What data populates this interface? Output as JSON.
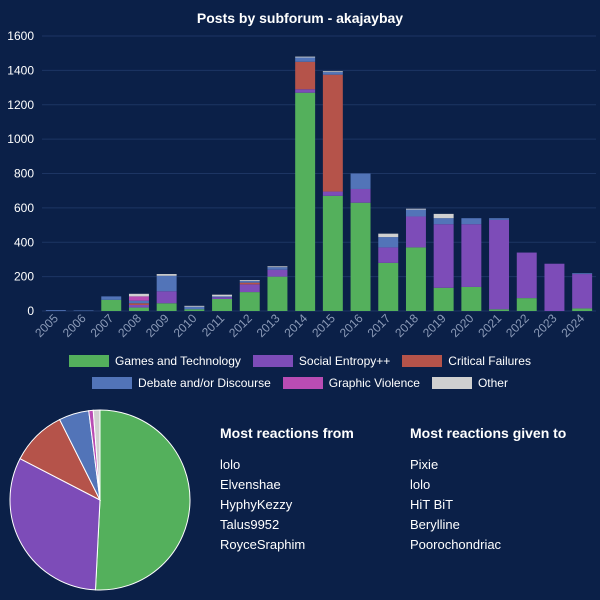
{
  "title": "Posts by subforum - akajaybay",
  "colors": {
    "Games and Technology": "#54b05c",
    "Social Entropy++": "#7d4cb8",
    "Critical Failures": "#b5534a",
    "Debate and/or Discourse": "#5274b8",
    "Graphic Violence": "#b94cb4",
    "Other": "#d0d0d0"
  },
  "chart_data": [
    {
      "type": "bar",
      "stacked": true,
      "title": "Posts by subforum - akajaybay",
      "categories": [
        "2005",
        "2006",
        "2007",
        "2008",
        "2009",
        "2010",
        "2011",
        "2012",
        "2013",
        "2014",
        "2015",
        "2016",
        "2017",
        "2018",
        "2019",
        "2020",
        "2021",
        "2022",
        "2023",
        "2024"
      ],
      "ylim": [
        0,
        1600
      ],
      "yticks": [
        0,
        200,
        400,
        600,
        800,
        1000,
        1200,
        1400,
        1600
      ],
      "grid": true,
      "legend_position": "bottom",
      "series": [
        {
          "name": "Games and Technology",
          "values": [
            0,
            0,
            65,
            20,
            45,
            10,
            70,
            110,
            200,
            1270,
            670,
            630,
            280,
            370,
            135,
            140,
            10,
            75,
            0,
            15
          ]
        },
        {
          "name": "Social Entropy++",
          "values": [
            0,
            0,
            0,
            15,
            70,
            0,
            10,
            45,
            40,
            20,
            25,
            80,
            90,
            180,
            370,
            365,
            520,
            265,
            275,
            200
          ]
        },
        {
          "name": "Critical Failures",
          "values": [
            0,
            0,
            0,
            10,
            0,
            0,
            0,
            10,
            0,
            160,
            680,
            0,
            0,
            0,
            0,
            0,
            0,
            0,
            0,
            0
          ]
        },
        {
          "name": "Debate and/or Discourse",
          "values": [
            5,
            3,
            20,
            15,
            90,
            15,
            5,
            10,
            15,
            25,
            15,
            90,
            60,
            40,
            35,
            35,
            10,
            0,
            0,
            5
          ]
        },
        {
          "name": "Graphic Violence",
          "values": [
            0,
            0,
            0,
            25,
            0,
            0,
            0,
            0,
            0,
            0,
            0,
            0,
            0,
            0,
            0,
            0,
            0,
            0,
            0,
            0
          ]
        },
        {
          "name": "Other",
          "values": [
            0,
            0,
            0,
            15,
            10,
            5,
            10,
            5,
            5,
            5,
            5,
            0,
            20,
            5,
            25,
            0,
            0,
            0,
            0,
            0
          ]
        }
      ]
    },
    {
      "type": "pie",
      "labels": [
        "Games and Technology",
        "Social Entropy++",
        "Critical Failures",
        "Debate and/or Discourse",
        "Graphic Violence",
        "Other"
      ],
      "values": [
        50.8,
        31.8,
        10.0,
        5.4,
        0.8,
        1.2
      ]
    }
  ],
  "legend_rows": [
    [
      "Games and Technology",
      "Social Entropy++",
      "Critical Failures"
    ],
    [
      "Debate and/or Discourse",
      "Graphic Violence",
      "Other"
    ]
  ],
  "reactions_from": {
    "heading": "Most reactions from",
    "names": [
      "lolo",
      "Elvenshae",
      "HyphyKezzy",
      "Talus9952",
      "RoyceSraphim"
    ]
  },
  "reactions_given": {
    "heading": "Most reactions given to",
    "names": [
      "Pixie",
      "lolo",
      "HiT BiT",
      "Berylline",
      "Poorochondriac"
    ]
  }
}
